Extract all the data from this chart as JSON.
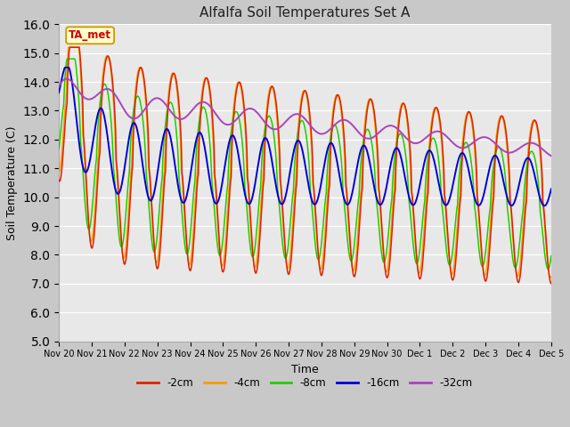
{
  "title": "Alfalfa Soil Temperatures Set A",
  "xlabel": "Time",
  "ylabel": "Soil Temperature (C)",
  "ylim": [
    5.0,
    16.0
  ],
  "yticks": [
    5.0,
    6.0,
    7.0,
    8.0,
    9.0,
    10.0,
    11.0,
    12.0,
    13.0,
    14.0,
    15.0,
    16.0
  ],
  "colors": {
    "-2cm": "#dd2200",
    "-4cm": "#ff9900",
    "-8cm": "#22cc00",
    "-16cm": "#0000dd",
    "-32cm": "#aa44bb"
  },
  "annotation_label": "TA_met",
  "annotation_color": "#cc0000",
  "annotation_bg": "#ffffcc",
  "xtick_labels": [
    "Nov 20",
    "Nov 21",
    "Nov 22",
    "Nov 23",
    "Nov 24",
    "Nov 25",
    "Nov 26",
    "Nov 27",
    "Nov 28",
    "Nov 29",
    "Nov 30",
    "Dec 1",
    "Dec 2",
    "Dec 3",
    "Dec 4",
    "Dec 5"
  ]
}
